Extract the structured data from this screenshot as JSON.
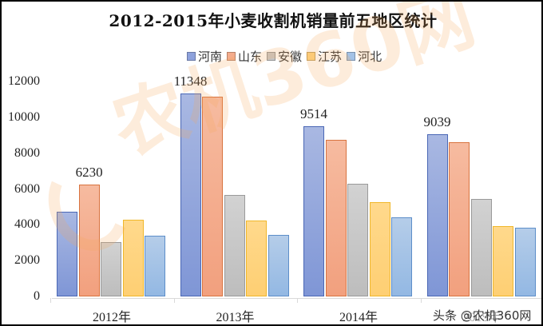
{
  "chart_data": {
    "type": "bar",
    "title": "2012-2015年小麦收割机销量前五地区统计",
    "categories": [
      "2012年",
      "2013年",
      "2014年",
      "2015年"
    ],
    "series": [
      {
        "name": "河南",
        "color": "#8ea2dc",
        "values": [
          4730,
          11348,
          9514,
          9039
        ]
      },
      {
        "name": "山东",
        "color": "#f4ac8c",
        "values": [
          6230,
          11150,
          8750,
          8600
        ]
      },
      {
        "name": "安徽",
        "color": "#c6c6c6",
        "values": [
          3030,
          5650,
          6300,
          5450
        ]
      },
      {
        "name": "江苏",
        "color": "#fed47f",
        "values": [
          4290,
          4220,
          5250,
          3920
        ]
      },
      {
        "name": "河北",
        "color": "#a3c2e6",
        "values": [
          3400,
          3420,
          4400,
          3840
        ]
      }
    ],
    "data_labels": [
      {
        "category": "2012年",
        "series": "山东",
        "text": "6230"
      },
      {
        "category": "2013年",
        "series": "河南",
        "text": "11348"
      },
      {
        "category": "2014年",
        "series": "河南",
        "text": "9514"
      },
      {
        "category": "2015年",
        "series": "河南",
        "text": "9039"
      }
    ],
    "xlabel": "",
    "ylabel": "",
    "ylim": [
      0,
      12000
    ],
    "yticks": [
      "0",
      "2000",
      "4000",
      "6000",
      "8000",
      "10000",
      "12000"
    ],
    "grid": false,
    "legend_position": "top"
  },
  "watermark": {
    "text": "农机360网",
    "credit": "头条 @农机360网"
  }
}
